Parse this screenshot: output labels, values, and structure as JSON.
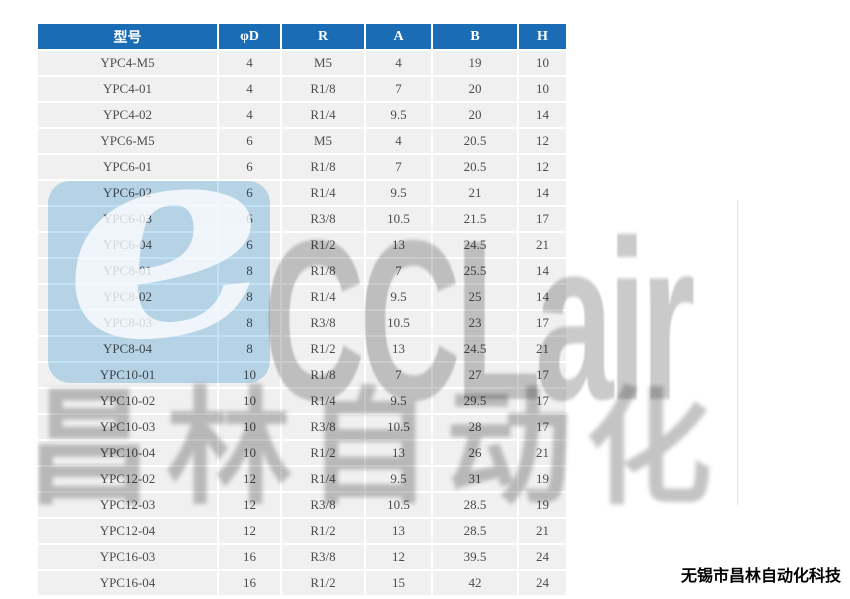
{
  "table": {
    "headers": [
      "型号",
      "φD",
      "R",
      "A",
      "B",
      "H"
    ],
    "rows": [
      [
        "YPC4-M5",
        "4",
        "M5",
        "4",
        "19",
        "10"
      ],
      [
        "YPC4-01",
        "4",
        "R1/8",
        "7",
        "20",
        "10"
      ],
      [
        "YPC4-02",
        "4",
        "R1/4",
        "9.5",
        "20",
        "14"
      ],
      [
        "YPC6-M5",
        "6",
        "M5",
        "4",
        "20.5",
        "12"
      ],
      [
        "YPC6-01",
        "6",
        "R1/8",
        "7",
        "20.5",
        "12"
      ],
      [
        "YPC6-02",
        "6",
        "R1/4",
        "9.5",
        "21",
        "14"
      ],
      [
        "YPC6-03",
        "6",
        "R3/8",
        "10.5",
        "21.5",
        "17"
      ],
      [
        "YPC6-04",
        "6",
        "R1/2",
        "13",
        "24.5",
        "21"
      ],
      [
        "YPC8-01",
        "8",
        "R1/8",
        "7",
        "25.5",
        "14"
      ],
      [
        "YPC8-02",
        "8",
        "R1/4",
        "9.5",
        "25",
        "14"
      ],
      [
        "YPC8-03",
        "8",
        "R3/8",
        "10.5",
        "23",
        "17"
      ],
      [
        "YPC8-04",
        "8",
        "R1/2",
        "13",
        "24.5",
        "21"
      ],
      [
        "YPC10-01",
        "10",
        "R1/8",
        "7",
        "27",
        "17"
      ],
      [
        "YPC10-02",
        "10",
        "R1/4",
        "9.5",
        "29.5",
        "17"
      ],
      [
        "YPC10-03",
        "10",
        "R3/8",
        "10.5",
        "28",
        "17"
      ],
      [
        "YPC10-04",
        "10",
        "R1/2",
        "13",
        "26",
        "21"
      ],
      [
        "YPC12-02",
        "12",
        "R1/4",
        "9.5",
        "31",
        "19"
      ],
      [
        "YPC12-03",
        "12",
        "R3/8",
        "10.5",
        "28.5",
        "19"
      ],
      [
        "YPC12-04",
        "12",
        "R1/2",
        "13",
        "28.5",
        "21"
      ],
      [
        "YPC16-03",
        "16",
        "R3/8",
        "12",
        "39.5",
        "24"
      ],
      [
        "YPC16-04",
        "16",
        "R1/2",
        "15",
        "42",
        "24"
      ]
    ]
  },
  "watermark": {
    "brand_text": "CCLair",
    "logo_letter": "e",
    "brand_text_cn": "昌林自动化"
  },
  "footer": {
    "company_name": "无锡市昌林自动化科技"
  },
  "colors": {
    "header_bg": "#1a6cb4",
    "row_bg": "#f0f0f0",
    "header_text": "#ffffff",
    "cell_text": "#4d4d4d",
    "logo_blue": "#c2e1f5",
    "watermark_gray": "#cacaca",
    "watermark_cn_gray": "#c4c4c4",
    "company_text": "#000000"
  }
}
